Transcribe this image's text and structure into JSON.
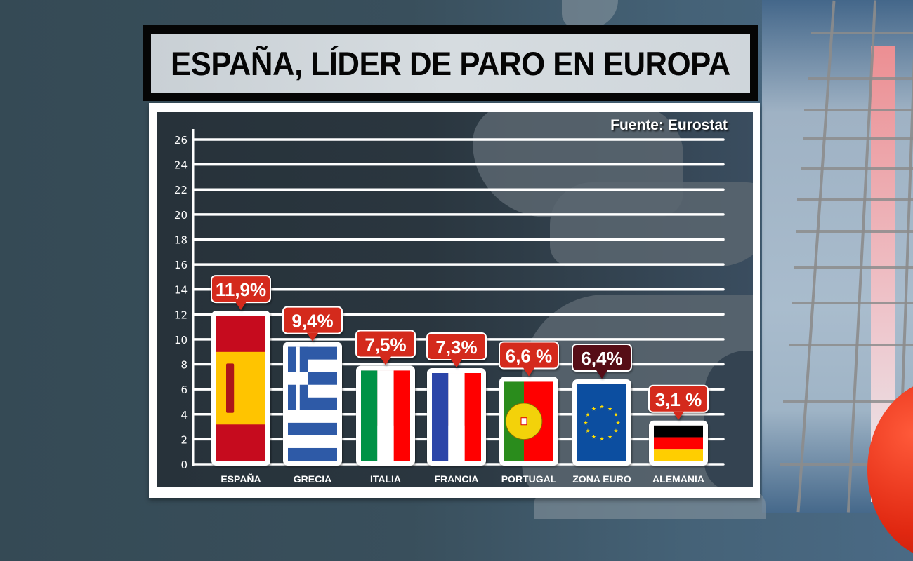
{
  "title": "ESPAÑA, LÍDER DE PARO EN EUROPA",
  "source": "Fuente: Eurostat",
  "colors": {
    "bar": "#b14646",
    "bar_highlight": "#560a12",
    "label_bg": "#d42b1a",
    "label_bg_highlight": "#560a12",
    "frame": "#ffffff"
  },
  "chart_data": {
    "type": "bar",
    "title": "ESPAÑA, LÍDER DE PARO EN EUROPA",
    "subtitle": "Fuente: Eurostat",
    "xlabel": "",
    "ylabel": "",
    "ylim": [
      0,
      26
    ],
    "yticks": [
      0,
      2,
      4,
      6,
      8,
      10,
      12,
      14,
      16,
      18,
      20,
      22,
      24,
      26
    ],
    "grid": true,
    "categories": [
      "ESPAÑA",
      "GRECIA",
      "ITALIA",
      "FRANCIA",
      "PORTUGAL",
      "ZONA EURO",
      "ALEMANIA"
    ],
    "values": [
      11.9,
      9.4,
      7.5,
      7.3,
      6.6,
      6.4,
      3.1
    ],
    "data_labels": [
      "11,9%",
      "9,4%",
      "7,5%",
      "7,3%",
      "6,6 %",
      "6,4%",
      "3,1 %"
    ],
    "flags": [
      "flag-spain",
      "flag-greece",
      "flag-italy",
      "flag-france",
      "flag-portugal",
      "flag-eu",
      "flag-germany"
    ],
    "highlight": [
      "ZONA EURO"
    ],
    "unit": "%"
  }
}
